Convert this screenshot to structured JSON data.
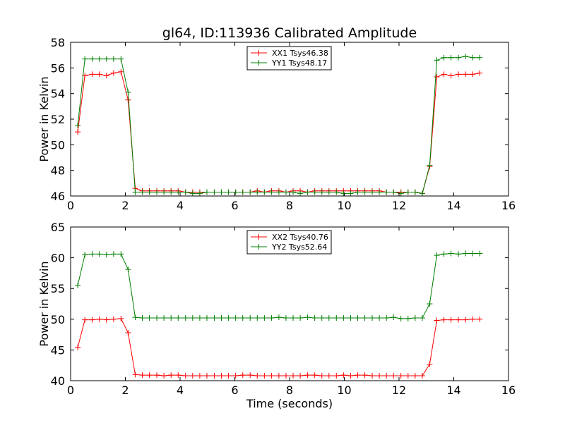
{
  "figure_title": "gl64, ID:113936 Calibrated Amplitude",
  "chart_data": [
    {
      "type": "line",
      "title": "gl64, ID:113936 Calibrated Amplitude",
      "xlabel": "",
      "ylabel": "Power in Kelvin",
      "xlim": [
        0,
        16
      ],
      "ylim": [
        46,
        58
      ],
      "xticks": [
        "0",
        "2",
        "4",
        "6",
        "8",
        "10",
        "12",
        "14",
        "16"
      ],
      "yticks": [
        "46",
        "48",
        "50",
        "52",
        "54",
        "56",
        "58"
      ],
      "legend_position": "top-center",
      "x": [
        0.26,
        0.52,
        0.79,
        1.05,
        1.31,
        1.57,
        1.84,
        2.1,
        2.36,
        2.62,
        2.88,
        3.15,
        3.41,
        3.67,
        3.93,
        4.2,
        4.46,
        4.72,
        4.98,
        5.25,
        5.51,
        5.77,
        6.03,
        6.29,
        6.56,
        6.82,
        7.08,
        7.34,
        7.61,
        7.87,
        8.13,
        8.39,
        8.66,
        8.92,
        9.18,
        9.44,
        9.71,
        9.97,
        10.23,
        10.49,
        10.75,
        11.02,
        11.28,
        11.54,
        11.8,
        12.07,
        12.33,
        12.59,
        12.85,
        13.12,
        13.38,
        13.64,
        13.9,
        14.17,
        14.43,
        14.69,
        14.95
      ],
      "series": [
        {
          "name": "XX1 Tsys46.38",
          "color": "#ff0000",
          "values": [
            51.0,
            55.4,
            55.5,
            55.5,
            55.4,
            55.6,
            55.7,
            53.5,
            46.6,
            46.4,
            46.4,
            46.4,
            46.4,
            46.4,
            46.4,
            46.3,
            46.3,
            46.3,
            46.3,
            46.3,
            46.3,
            46.3,
            46.3,
            46.3,
            46.3,
            46.4,
            46.3,
            46.4,
            46.4,
            46.3,
            46.4,
            46.4,
            46.3,
            46.4,
            46.4,
            46.4,
            46.4,
            46.4,
            46.4,
            46.4,
            46.4,
            46.4,
            46.4,
            46.3,
            46.3,
            46.3,
            46.3,
            46.3,
            46.2,
            48.3,
            55.3,
            55.5,
            55.4,
            55.5,
            55.5,
            55.5,
            55.6
          ]
        },
        {
          "name": "YY1 Tsys48.17",
          "color": "#007f00",
          "values": [
            51.5,
            56.7,
            56.7,
            56.7,
            56.7,
            56.7,
            56.7,
            54.1,
            46.3,
            46.3,
            46.3,
            46.3,
            46.3,
            46.3,
            46.3,
            46.3,
            46.2,
            46.2,
            46.3,
            46.3,
            46.3,
            46.3,
            46.3,
            46.3,
            46.3,
            46.3,
            46.3,
            46.3,
            46.3,
            46.3,
            46.3,
            46.2,
            46.3,
            46.3,
            46.3,
            46.3,
            46.3,
            46.2,
            46.2,
            46.3,
            46.3,
            46.3,
            46.3,
            46.3,
            46.3,
            46.2,
            46.3,
            46.3,
            46.2,
            48.4,
            56.6,
            56.8,
            56.8,
            56.8,
            56.9,
            56.8,
            56.8
          ]
        }
      ]
    },
    {
      "type": "line",
      "title": "",
      "xlabel": "Time (seconds)",
      "ylabel": "Power in Kelvin",
      "xlim": [
        0,
        16
      ],
      "ylim": [
        40,
        65
      ],
      "xticks": [
        "0",
        "2",
        "4",
        "6",
        "8",
        "10",
        "12",
        "14",
        "16"
      ],
      "yticks": [
        "40",
        "45",
        "50",
        "55",
        "60",
        "65"
      ],
      "legend_position": "top-center",
      "x": [
        0.26,
        0.52,
        0.79,
        1.05,
        1.31,
        1.57,
        1.84,
        2.1,
        2.36,
        2.62,
        2.88,
        3.15,
        3.41,
        3.67,
        3.93,
        4.2,
        4.46,
        4.72,
        4.98,
        5.25,
        5.51,
        5.77,
        6.03,
        6.29,
        6.56,
        6.82,
        7.08,
        7.34,
        7.61,
        7.87,
        8.13,
        8.39,
        8.66,
        8.92,
        9.18,
        9.44,
        9.71,
        9.97,
        10.23,
        10.49,
        10.75,
        11.02,
        11.28,
        11.54,
        11.8,
        12.07,
        12.33,
        12.59,
        12.85,
        13.12,
        13.38,
        13.64,
        13.9,
        14.17,
        14.43,
        14.69,
        14.95
      ],
      "series": [
        {
          "name": "XX2 Tsys40.76",
          "color": "#ff0000",
          "values": [
            45.4,
            49.9,
            49.9,
            50.0,
            49.9,
            50.0,
            50.1,
            47.8,
            41.0,
            40.9,
            40.9,
            40.9,
            40.8,
            40.9,
            40.9,
            40.8,
            40.8,
            40.8,
            40.8,
            40.8,
            40.8,
            40.8,
            40.8,
            40.9,
            40.9,
            40.8,
            40.8,
            40.8,
            40.8,
            40.8,
            40.8,
            40.8,
            40.9,
            40.9,
            40.8,
            40.8,
            40.8,
            40.9,
            40.8,
            40.9,
            40.9,
            40.8,
            40.8,
            40.8,
            40.8,
            40.8,
            40.8,
            40.8,
            40.8,
            42.7,
            49.8,
            49.9,
            49.9,
            49.9,
            49.9,
            50.0,
            50.0
          ]
        },
        {
          "name": "YY2 Tsys52.64",
          "color": "#007f00",
          "values": [
            55.5,
            60.5,
            60.6,
            60.6,
            60.5,
            60.6,
            60.6,
            58.1,
            50.3,
            50.2,
            50.2,
            50.2,
            50.2,
            50.2,
            50.2,
            50.2,
            50.2,
            50.2,
            50.2,
            50.2,
            50.2,
            50.2,
            50.2,
            50.2,
            50.2,
            50.2,
            50.2,
            50.2,
            50.3,
            50.2,
            50.2,
            50.2,
            50.3,
            50.2,
            50.2,
            50.2,
            50.2,
            50.2,
            50.2,
            50.2,
            50.2,
            50.2,
            50.2,
            50.2,
            50.3,
            50.1,
            50.1,
            50.2,
            50.2,
            52.5,
            60.4,
            60.6,
            60.7,
            60.6,
            60.7,
            60.7,
            60.7
          ]
        }
      ]
    }
  ]
}
